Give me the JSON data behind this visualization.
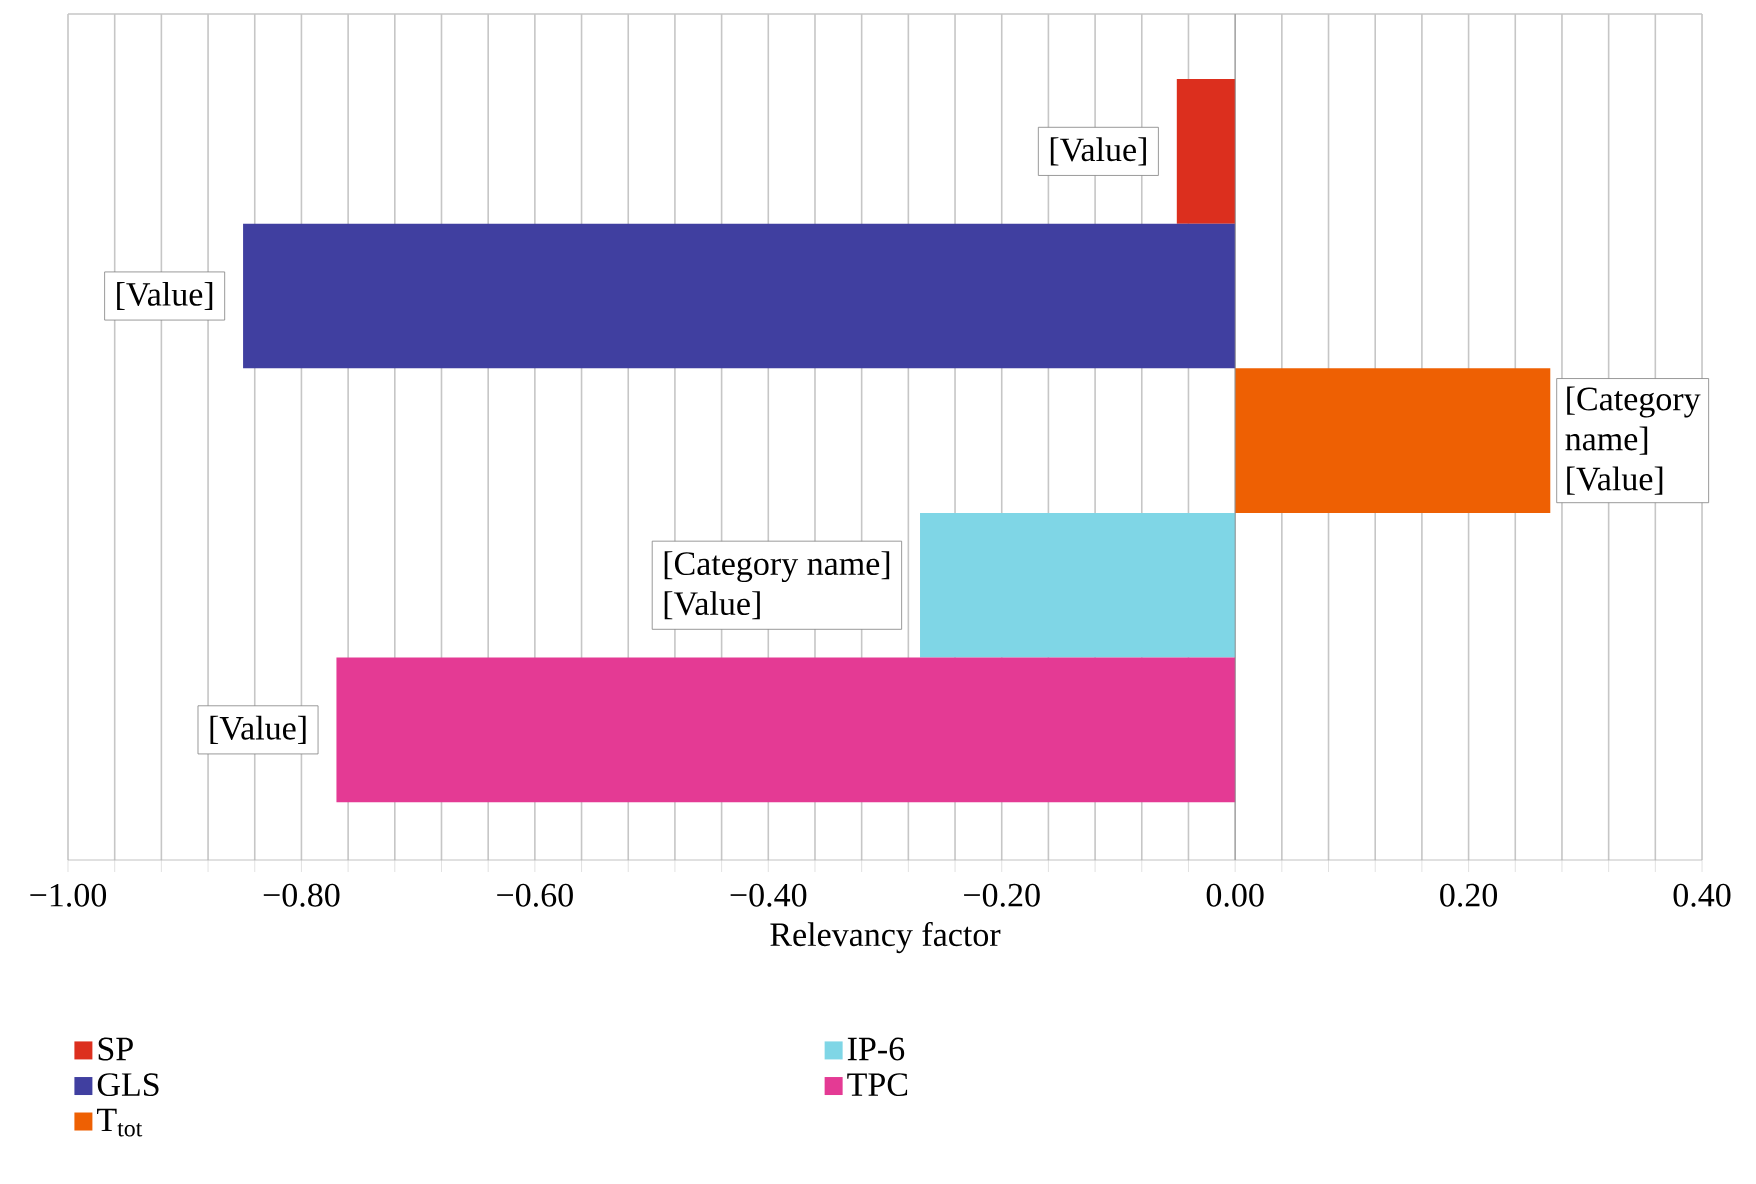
{
  "chart_data": {
    "type": "bar",
    "orientation": "horizontal",
    "xlabel": "Relevancy factor",
    "categories": [
      null,
      null,
      null,
      null,
      null
    ],
    "series": [
      {
        "name": "SP",
        "color": "#dc2f1e",
        "values": [
          -0.05,
          null,
          null,
          null,
          null
        ],
        "value_labels": [
          "[Value]",
          null,
          null,
          null,
          null
        ]
      },
      {
        "name": "GLS",
        "color": "#403fa0",
        "values": [
          null,
          -0.85,
          null,
          null,
          null
        ],
        "value_labels": [
          null,
          "[Value]",
          null,
          null,
          null
        ]
      },
      {
        "name": "T$_{tot}$",
        "color": "#ee6003",
        "values": [
          null,
          null,
          0.27,
          null,
          null
        ],
        "value_labels": [
          null,
          null,
          "[Category name] [Value]",
          null,
          null
        ]
      },
      {
        "name": "IP-6",
        "color": "#7fd6e6",
        "values": [
          null,
          null,
          null,
          -0.27,
          null
        ],
        "value_labels": [
          null,
          null,
          null,
          "[Category name] [Value]",
          null
        ]
      },
      {
        "name": "TPC",
        "color": "#e43a94",
        "values": [
          null,
          null,
          null,
          null,
          -0.77
        ],
        "value_labels": [
          null,
          null,
          null,
          null,
          "[Value]"
        ]
      }
    ],
    "xlim": [
      -1.0,
      0.4
    ],
    "xticks": [
      {
        "value": -1.0,
        "label": "−1.00"
      },
      {
        "value": -0.96,
        "label": null
      },
      {
        "value": -0.92,
        "label": null
      },
      {
        "value": -0.88,
        "label": null
      },
      {
        "value": -0.84,
        "label": null
      },
      {
        "value": -0.8,
        "label": "−0.80"
      },
      {
        "value": -0.76,
        "label": null
      },
      {
        "value": -0.72,
        "label": null
      },
      {
        "value": -0.68,
        "label": null
      },
      {
        "value": -0.64,
        "label": null
      },
      {
        "value": -0.6,
        "label": "−0.60"
      },
      {
        "value": -0.56,
        "label": null
      },
      {
        "value": -0.52,
        "label": null
      },
      {
        "value": -0.48,
        "label": null
      },
      {
        "value": -0.44,
        "label": null
      },
      {
        "value": -0.4,
        "label": "−0.40"
      },
      {
        "value": -0.36,
        "label": null
      },
      {
        "value": -0.32,
        "label": null
      },
      {
        "value": -0.28,
        "label": null
      },
      {
        "value": -0.24,
        "label": null
      },
      {
        "value": -0.2,
        "label": "−0.20"
      },
      {
        "value": -0.16,
        "label": null
      },
      {
        "value": -0.12,
        "label": null
      },
      {
        "value": -0.08,
        "label": null
      },
      {
        "value": -0.04,
        "label": null
      },
      {
        "value": 0.0,
        "label": "0.00"
      },
      {
        "value": 0.04,
        "label": null
      },
      {
        "value": 0.08,
        "label": null
      },
      {
        "value": 0.12,
        "label": null
      },
      {
        "value": 0.16,
        "label": null
      },
      {
        "value": 0.2,
        "label": "0.20"
      },
      {
        "value": 0.24,
        "label": null
      },
      {
        "value": 0.28,
        "label": null
      },
      {
        "value": 0.32,
        "label": null
      },
      {
        "value": 0.36,
        "label": null
      },
      {
        "value": 0.4,
        "label": "0.40"
      }
    ],
    "grid": "x",
    "legend": "bottom"
  }
}
